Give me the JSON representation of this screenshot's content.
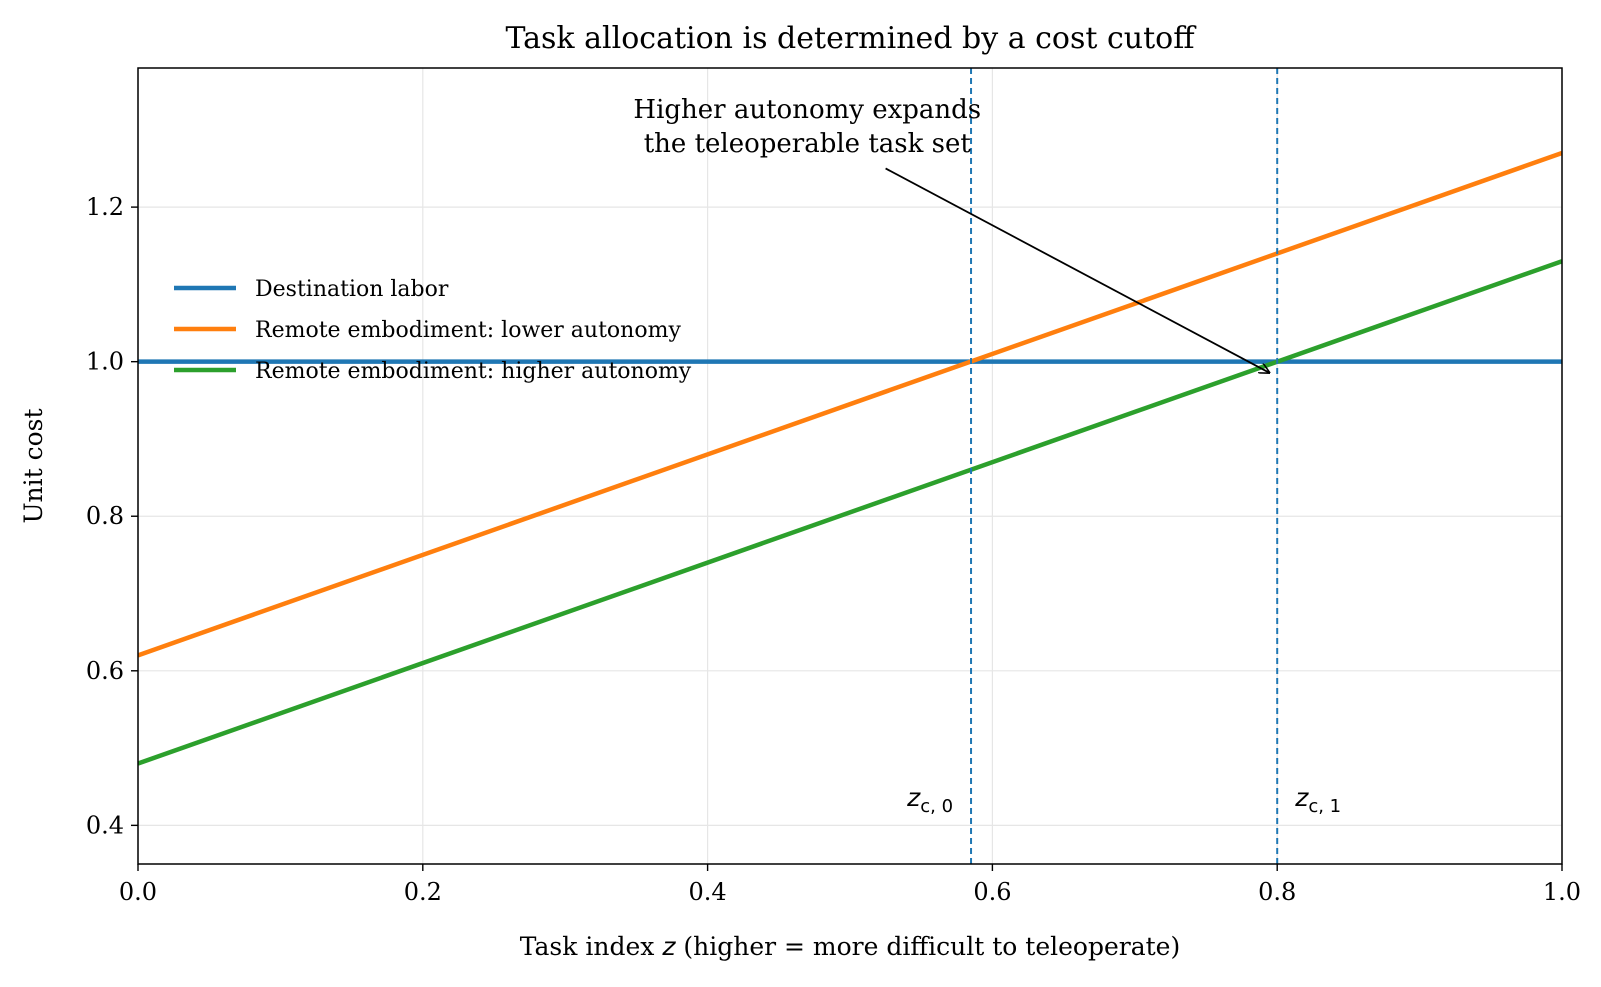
{
  "chart_data": {
    "type": "line",
    "title": "Task allocation is determined by a cost cutoff",
    "xlabel_parts": {
      "pre": "Task index ",
      "var": "z",
      "post": " (higher = more difficult to teleoperate)"
    },
    "ylabel": "Unit cost",
    "xlim": [
      0.0,
      1.0
    ],
    "ylim": [
      0.35,
      1.38
    ],
    "xticks": [
      0.0,
      0.2,
      0.4,
      0.6,
      0.8,
      1.0
    ],
    "xtick_labels": [
      "0.0",
      "0.2",
      "0.4",
      "0.6",
      "0.8",
      "1.0"
    ],
    "yticks": [
      0.4,
      0.6,
      0.8,
      1.0,
      1.2
    ],
    "ytick_labels": [
      "0.4",
      "0.6",
      "0.8",
      "1.0",
      "1.2"
    ],
    "grid": true,
    "legend_position": "upper-left",
    "series": [
      {
        "name": "Destination labor",
        "color": "#1f77b4",
        "x": [
          0.0,
          1.0
        ],
        "y": [
          1.0,
          1.0
        ]
      },
      {
        "name": "Remote embodiment: lower autonomy",
        "color": "#ff7f0e",
        "x": [
          0.0,
          1.0
        ],
        "y": [
          0.62,
          1.27
        ]
      },
      {
        "name": "Remote embodiment: higher autonomy",
        "color": "#2ca02c",
        "x": [
          0.0,
          1.0
        ],
        "y": [
          0.48,
          1.13
        ]
      }
    ],
    "cutoffs": [
      {
        "label_main": "z",
        "label_sub": "c, 0",
        "x": 0.585,
        "color": "#1f77b4"
      },
      {
        "label_main": "z",
        "label_sub": "c, 1",
        "x": 0.8,
        "color": "#1f77b4"
      }
    ],
    "annotation": {
      "lines": [
        "Higher autonomy expands",
        "the teleoperable task set"
      ],
      "text_x": 0.47,
      "text_y": 1.295,
      "arrow_from": [
        0.525,
        1.25
      ],
      "arrow_to": [
        0.8,
        1.0
      ]
    }
  }
}
